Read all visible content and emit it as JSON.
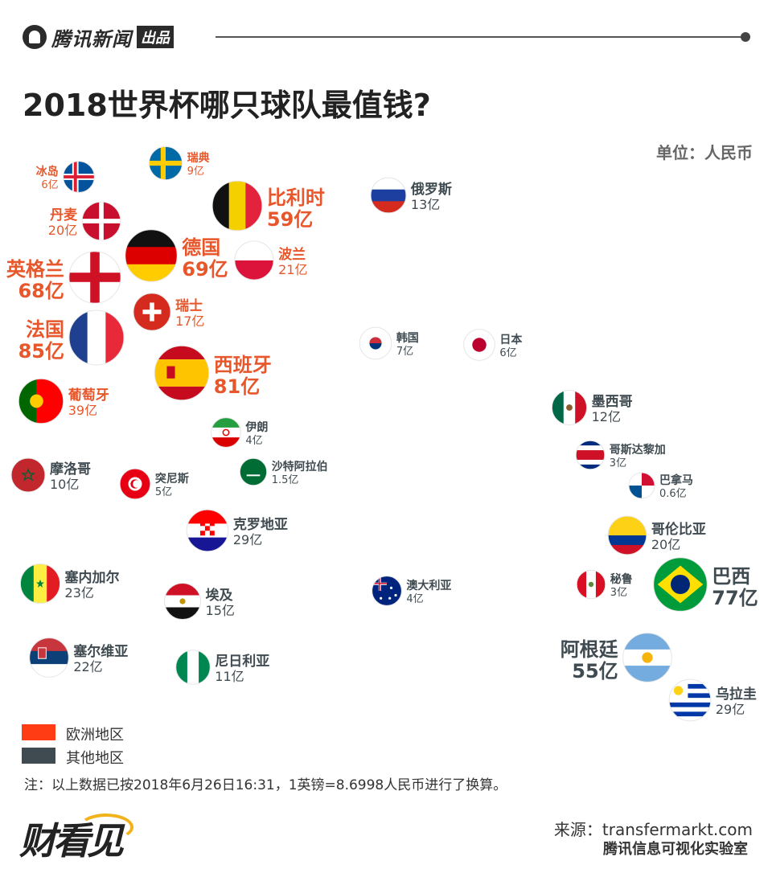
{
  "header": {
    "brand": "腾讯新闻",
    "badge": "出品"
  },
  "title": "2018世界杯哪只球队最值钱?",
  "unit": "单位：人民币",
  "legend": [
    {
      "label": "欧洲地区",
      "color": "#ff3c14"
    },
    {
      "label": "其他地区",
      "color": "#3f4b51"
    }
  ],
  "note": "注：以上数据已按2018年6月26日16:31，1英镑=8.6998人民币进行了换算。",
  "footer": {
    "brand_mark": "财看见",
    "source": "来源：transfermarkt.com",
    "credit": "腾讯信息可视化实验室"
  },
  "chart_data": {
    "type": "bubble",
    "value_unit": "亿",
    "series": [
      {
        "name": "欧洲地区",
        "color": "#e8572b"
      },
      {
        "name": "其他地区",
        "color": "#3f4b51"
      }
    ],
    "teams": [
      {
        "id": "france",
        "name": "法国",
        "value": 85,
        "label": "85亿",
        "region": "欧洲地区",
        "flag": "france"
      },
      {
        "id": "spain",
        "name": "西班牙",
        "value": 81,
        "label": "81亿",
        "region": "欧洲地区",
        "flag": "spain"
      },
      {
        "id": "brazil",
        "name": "巴西",
        "value": 77,
        "label": "77亿",
        "region": "其他地区",
        "flag": "brazil"
      },
      {
        "id": "germany",
        "name": "德国",
        "value": 69,
        "label": "69亿",
        "region": "欧洲地区",
        "flag": "germany"
      },
      {
        "id": "england",
        "name": "英格兰",
        "value": 68,
        "label": "68亿",
        "region": "欧洲地区",
        "flag": "england"
      },
      {
        "id": "belgium",
        "name": "比利时",
        "value": 59,
        "label": "59亿",
        "region": "欧洲地区",
        "flag": "belgium"
      },
      {
        "id": "argentina",
        "name": "阿根廷",
        "value": 55,
        "label": "55亿",
        "region": "其他地区",
        "flag": "argentina"
      },
      {
        "id": "portugal",
        "name": "葡萄牙",
        "value": 39,
        "label": "39亿",
        "region": "欧洲地区",
        "flag": "portugal"
      },
      {
        "id": "croatia",
        "name": "克罗地亚",
        "value": 29,
        "label": "29亿",
        "region": "其他地区",
        "flag": "croatia"
      },
      {
        "id": "uruguay",
        "name": "乌拉圭",
        "value": 29,
        "label": "29亿",
        "region": "其他地区",
        "flag": "uruguay"
      },
      {
        "id": "senegal",
        "name": "塞内加尔",
        "value": 23,
        "label": "23亿",
        "region": "其他地区",
        "flag": "senegal"
      },
      {
        "id": "serbia",
        "name": "塞尔维亚",
        "value": 22,
        "label": "22亿",
        "region": "其他地区",
        "flag": "serbia"
      },
      {
        "id": "poland",
        "name": "波兰",
        "value": 21,
        "label": "21亿",
        "region": "欧洲地区",
        "flag": "poland"
      },
      {
        "id": "denmark",
        "name": "丹麦",
        "value": 20,
        "label": "20亿",
        "region": "欧洲地区",
        "flag": "denmark"
      },
      {
        "id": "colombia",
        "name": "哥伦比亚",
        "value": 20,
        "label": "20亿",
        "region": "其他地区",
        "flag": "colombia"
      },
      {
        "id": "switzerland",
        "name": "瑞士",
        "value": 17,
        "label": "17亿",
        "region": "欧洲地区",
        "flag": "switzerland"
      },
      {
        "id": "egypt",
        "name": "埃及",
        "value": 15,
        "label": "15亿",
        "region": "其他地区",
        "flag": "egypt"
      },
      {
        "id": "russia",
        "name": "俄罗斯",
        "value": 13,
        "label": "13亿",
        "region": "其他地区",
        "flag": "russia"
      },
      {
        "id": "mexico",
        "name": "墨西哥",
        "value": 12,
        "label": "12亿",
        "region": "其他地区",
        "flag": "mexico"
      },
      {
        "id": "nigeria",
        "name": "尼日利亚",
        "value": 11,
        "label": "11亿",
        "region": "其他地区",
        "flag": "nigeria"
      },
      {
        "id": "morocco",
        "name": "摩洛哥",
        "value": 10,
        "label": "10亿",
        "region": "其他地区",
        "flag": "morocco"
      },
      {
        "id": "sweden",
        "name": "瑞典",
        "value": 9,
        "label": "9亿",
        "region": "欧洲地区",
        "flag": "sweden"
      },
      {
        "id": "korea",
        "name": "韩国",
        "value": 7,
        "label": "7亿",
        "region": "其他地区",
        "flag": "korea"
      },
      {
        "id": "iceland",
        "name": "冰岛",
        "value": 6,
        "label": "6亿",
        "region": "欧洲地区",
        "flag": "iceland"
      },
      {
        "id": "japan",
        "name": "日本",
        "value": 6,
        "label": "6亿",
        "region": "其他地区",
        "flag": "japan"
      },
      {
        "id": "tunisia",
        "name": "突尼斯",
        "value": 5,
        "label": "5亿",
        "region": "其他地区",
        "flag": "tunisia"
      },
      {
        "id": "iran",
        "name": "伊朗",
        "value": 4,
        "label": "4亿",
        "region": "其他地区",
        "flag": "iran"
      },
      {
        "id": "australia",
        "name": "澳大利亚",
        "value": 4,
        "label": "4亿",
        "region": "其他地区",
        "flag": "australia"
      },
      {
        "id": "costarica",
        "name": "哥斯达黎加",
        "value": 3,
        "label": "3亿",
        "region": "其他地区",
        "flag": "costarica"
      },
      {
        "id": "peru",
        "name": "秘鲁",
        "value": 3,
        "label": "3亿",
        "region": "其他地区",
        "flag": "peru"
      },
      {
        "id": "saudi",
        "name": "沙特阿拉伯",
        "value": 1.5,
        "label": "1.5亿",
        "region": "其他地区",
        "flag": "saudi"
      },
      {
        "id": "panama",
        "name": "巴拿马",
        "value": 0.6,
        "label": "0.6亿",
        "region": "其他地区",
        "flag": "panama"
      }
    ]
  }
}
